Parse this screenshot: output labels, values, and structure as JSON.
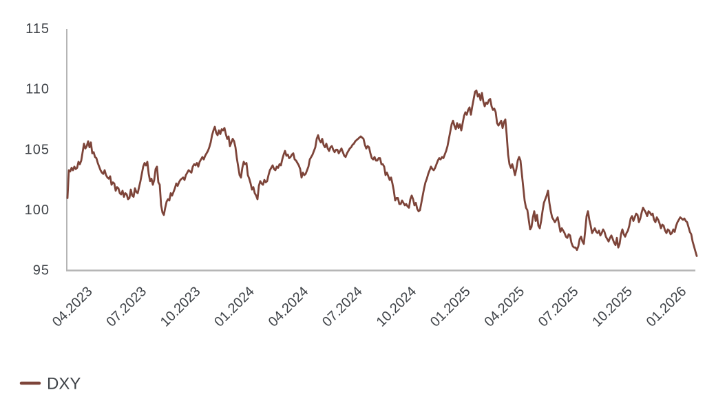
{
  "page": {
    "background": "#ffffff"
  },
  "legend": {
    "label": "DXY"
  },
  "chart_data": {
    "type": "line",
    "title": "",
    "xlabel": "",
    "ylabel": "",
    "grid": false,
    "legend_position": "bottom-left",
    "axis_color": "#b5b5b5",
    "label_color": "#3e4247",
    "ylim": [
      95,
      115
    ],
    "y_ticks": [
      95,
      100,
      105,
      110,
      115
    ],
    "x_tick_labels": [
      "04.2023",
      "07.2023",
      "10.2023",
      "01.2024",
      "04.2024",
      "07.2024",
      "10.2024",
      "01.2025",
      "04.2025",
      "07.2025",
      "10.2025",
      "01.2026"
    ],
    "x_tick_months": [
      1,
      4,
      7,
      10,
      13,
      16,
      19,
      22,
      25,
      28,
      31,
      34
    ],
    "x_months_total": 35,
    "series": [
      {
        "name": "DXY",
        "color": "#7d4439",
        "values": [
          101.0,
          103.3,
          103.2,
          103.5,
          103.3,
          103.6,
          103.4,
          103.5,
          104.0,
          103.8,
          104.1,
          104.8,
          105.5,
          105.1,
          105.3,
          105.7,
          105.2,
          105.6,
          104.7,
          104.8,
          104.4,
          104.3,
          103.9,
          103.6,
          103.3,
          103.1,
          103.0,
          103.3,
          102.9,
          102.7,
          102.6,
          102.8,
          102.1,
          102.3,
          102.2,
          101.6,
          101.9,
          101.8,
          101.4,
          101.3,
          101.6,
          101.1,
          101.4,
          101.3,
          100.9,
          101.0,
          101.7,
          101.2,
          101.1,
          101.8,
          101.5,
          101.4,
          101.9,
          102.4,
          103.0,
          103.6,
          103.9,
          103.7,
          104.0,
          103.0,
          102.4,
          102.6,
          102.1,
          102.5,
          103.4,
          103.6,
          102.3,
          102.1,
          100.4,
          99.8,
          99.6,
          100.2,
          100.7,
          100.9,
          100.8,
          101.4,
          101.2,
          101.5,
          101.8,
          102.2,
          102.0,
          102.3,
          102.5,
          102.6,
          102.7,
          102.5,
          102.9,
          103.1,
          103.3,
          103.2,
          103.1,
          103.6,
          103.8,
          103.7,
          103.9,
          103.6,
          104.0,
          104.2,
          104.4,
          104.2,
          104.5,
          104.7,
          104.9,
          105.2,
          105.6,
          106.2,
          106.6,
          106.9,
          106.4,
          106.2,
          106.6,
          106.3,
          106.7,
          106.6,
          106.8,
          106.3,
          105.9,
          106.1,
          105.3,
          105.6,
          105.9,
          105.7,
          105.2,
          104.3,
          103.6,
          102.9,
          102.7,
          103.5,
          104.0,
          103.8,
          103.9,
          102.9,
          102.6,
          102.2,
          101.7,
          101.9,
          101.4,
          101.2,
          100.9,
          102.0,
          102.4,
          102.2,
          102.1,
          102.5,
          102.3,
          102.4,
          102.9,
          103.3,
          103.5,
          103.7,
          103.4,
          103.3,
          103.6,
          103.5,
          103.8,
          103.7,
          104.2,
          104.6,
          104.9,
          104.5,
          104.6,
          104.3,
          104.4,
          104.6,
          104.7,
          104.2,
          104.1,
          103.9,
          103.7,
          103.4,
          102.7,
          103.1,
          102.9,
          103.0,
          103.3,
          103.6,
          104.2,
          104.4,
          104.6,
          104.9,
          105.2,
          105.9,
          106.2,
          105.8,
          105.6,
          105.9,
          105.4,
          105.2,
          105.5,
          105.1,
          104.9,
          105.2,
          105.3,
          105.0,
          104.8,
          105.0,
          105.0,
          104.7,
          104.9,
          105.1,
          104.8,
          104.5,
          104.4,
          104.7,
          104.9,
          105.1,
          105.2,
          105.4,
          105.5,
          105.7,
          105.8,
          105.9,
          106.0,
          106.1,
          106.0,
          105.9,
          105.4,
          105.1,
          105.3,
          105.2,
          104.7,
          104.3,
          104.2,
          104.4,
          104.1,
          104.1,
          104.3,
          104.3,
          103.8,
          103.8,
          103.6,
          102.9,
          103.1,
          102.8,
          102.5,
          102.7,
          102.2,
          101.6,
          100.8,
          101.0,
          101.0,
          100.5,
          100.5,
          100.8,
          100.6,
          100.4,
          100.5,
          100.3,
          100.2,
          100.9,
          101.2,
          100.9,
          100.4,
          100.6,
          100.1,
          99.9,
          100.0,
          100.6,
          101.2,
          101.8,
          102.3,
          102.6,
          103.0,
          103.3,
          103.6,
          103.4,
          103.3,
          103.5,
          103.8,
          104.1,
          104.3,
          104.2,
          104.4,
          104.3,
          104.6,
          104.9,
          105.3,
          105.9,
          106.5,
          107.1,
          107.4,
          107.0,
          106.7,
          107.2,
          106.8,
          107.1,
          106.6,
          107.2,
          107.8,
          108.1,
          107.9,
          108.3,
          108.5,
          107.9,
          108.6,
          109.2,
          109.8,
          109.9,
          109.4,
          109.6,
          109.1,
          109.7,
          109.0,
          108.6,
          108.9,
          108.8,
          109.1,
          109.2,
          108.6,
          108.3,
          108.4,
          108.1,
          107.2,
          107.0,
          107.2,
          107.4,
          106.8,
          107.3,
          107.5,
          106.2,
          104.6,
          103.8,
          103.5,
          103.8,
          103.4,
          102.9,
          103.4,
          104.1,
          104.4,
          104.1,
          103.0,
          101.9,
          100.8,
          100.2,
          100.0,
          99.2,
          98.4,
          98.6,
          99.4,
          99.9,
          99.1,
          99.6,
          98.7,
          98.5,
          99.1,
          99.9,
          100.6,
          100.9,
          101.2,
          101.6,
          100.6,
          99.9,
          99.4,
          99.2,
          99.0,
          99.2,
          99.4,
          98.8,
          98.2,
          98.5,
          98.3,
          98.1,
          97.8,
          97.7,
          98.0,
          97.9,
          97.3,
          97.0,
          96.9,
          96.9,
          96.7,
          97.0,
          97.6,
          97.8,
          97.4,
          97.2,
          98.3,
          99.5,
          99.9,
          99.2,
          98.7,
          98.1,
          98.3,
          98.5,
          98.2,
          98.1,
          98.3,
          97.9,
          98.1,
          98.4,
          98.2,
          97.8,
          97.6,
          97.4,
          97.7,
          97.9,
          97.6,
          97.3,
          97.1,
          97.7,
          96.9,
          97.2,
          98.0,
          98.4,
          98.0,
          97.8,
          98.1,
          98.3,
          98.7,
          99.3,
          99.5,
          99.1,
          99.4,
          99.7,
          99.6,
          99.0,
          99.3,
          99.8,
          100.2,
          100.0,
          99.8,
          99.5,
          99.9,
          99.8,
          99.6,
          99.7,
          99.2,
          99.0,
          99.4,
          99.2,
          98.9,
          98.5,
          98.8,
          98.7,
          98.3,
          98.1,
          98.4,
          98.3,
          98.0,
          98.1,
          98.4,
          98.2,
          98.7,
          99.0,
          99.2,
          99.4,
          99.3,
          99.2,
          99.3,
          99.1,
          99.0,
          98.6,
          98.2,
          98.0,
          97.4,
          97.0,
          96.6,
          96.2
        ]
      }
    ]
  }
}
